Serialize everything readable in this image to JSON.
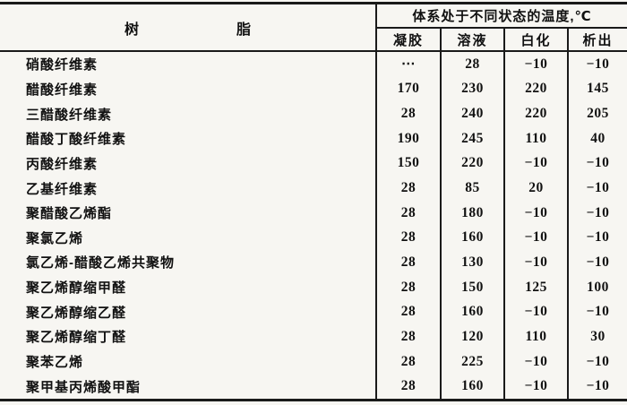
{
  "table": {
    "resin_header": "树脂",
    "temp_header": "体系处于不同状态的温度,℃",
    "state_columns": [
      "凝胶",
      "溶液",
      "白化",
      "析出"
    ],
    "rows": [
      {
        "resin": "硝酸纤维素",
        "values": [
          "⋯",
          "28",
          "−10",
          "−10"
        ]
      },
      {
        "resin": "醋酸纤维素",
        "values": [
          "170",
          "230",
          "220",
          "145"
        ]
      },
      {
        "resin": "三醋酸纤维素",
        "values": [
          "28",
          "240",
          "220",
          "205"
        ]
      },
      {
        "resin": "醋酸丁酸纤维素",
        "values": [
          "190",
          "245",
          "110",
          "40"
        ]
      },
      {
        "resin": "丙酸纤维素",
        "values": [
          "150",
          "220",
          "−10",
          "−10"
        ]
      },
      {
        "resin": "乙基纤维素",
        "values": [
          "28",
          "85",
          "20",
          "−10"
        ]
      },
      {
        "resin": "聚醋酸乙烯酯",
        "values": [
          "28",
          "180",
          "−10",
          "−10"
        ]
      },
      {
        "resin": "聚氯乙烯",
        "values": [
          "28",
          "160",
          "−10",
          "−10"
        ]
      },
      {
        "resin": "氯乙烯-醋酸乙烯共聚物",
        "values": [
          "28",
          "130",
          "−10",
          "−10"
        ]
      },
      {
        "resin": "聚乙烯醇缩甲醛",
        "values": [
          "28",
          "150",
          "125",
          "100"
        ]
      },
      {
        "resin": "聚乙烯醇缩乙醛",
        "values": [
          "28",
          "160",
          "−10",
          "−10"
        ]
      },
      {
        "resin": "聚乙烯醇缩丁醛",
        "values": [
          "28",
          "120",
          "110",
          "30"
        ]
      },
      {
        "resin": "聚苯乙烯",
        "values": [
          "28",
          "225",
          "−10",
          "−10"
        ]
      },
      {
        "resin": "聚甲基丙烯酸甲酯",
        "values": [
          "28",
          "160",
          "−10",
          "−10"
        ]
      }
    ]
  }
}
